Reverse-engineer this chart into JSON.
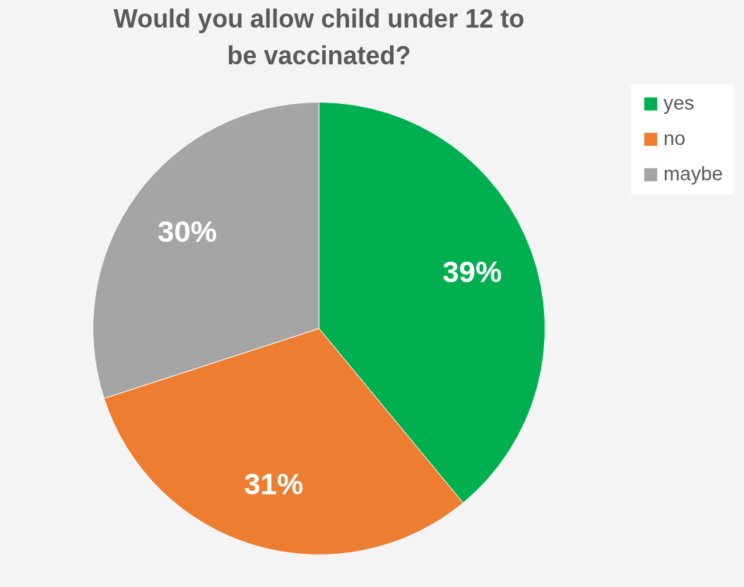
{
  "chart_data": {
    "type": "pie",
    "title": "Would you allow child under 12 to be vaccinated?",
    "categories": [
      "yes",
      "no",
      "maybe"
    ],
    "values": [
      39,
      31,
      30
    ],
    "colors": [
      "#00b050",
      "#ed7d31",
      "#a5a5a5"
    ],
    "value_labels": [
      "39%",
      "31%",
      "30%"
    ],
    "legend": "right"
  }
}
